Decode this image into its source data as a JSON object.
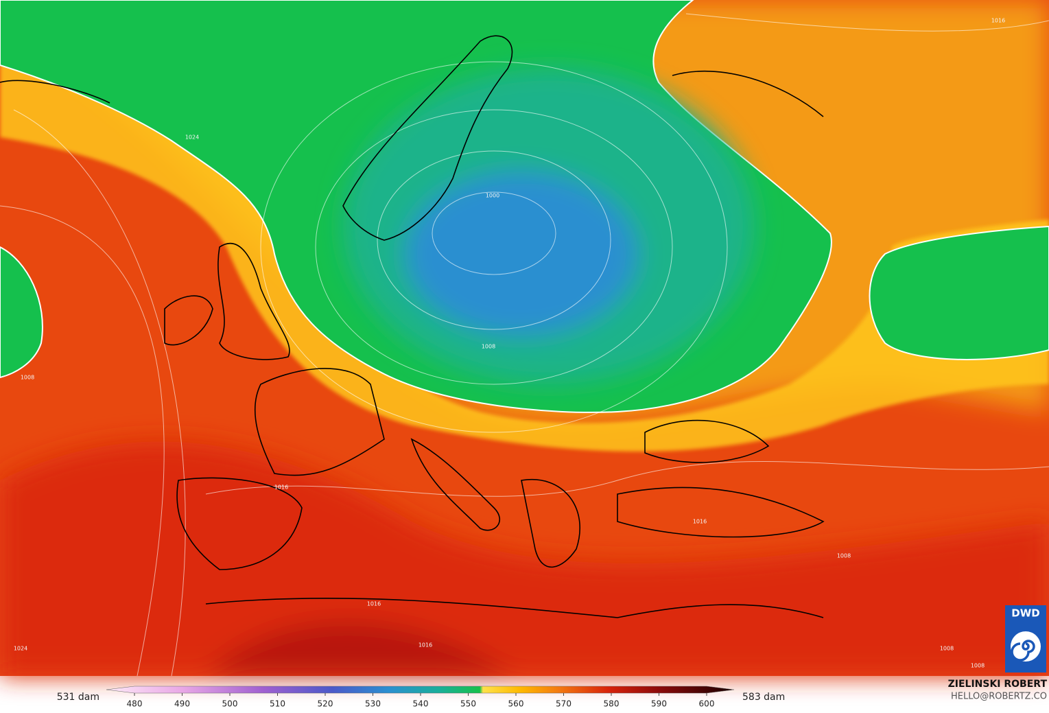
{
  "legend": {
    "min_label": "531 dam",
    "max_label": "583 dam",
    "ticks": [
      480,
      490,
      500,
      510,
      520,
      530,
      540,
      550,
      560,
      570,
      580,
      590,
      600
    ]
  },
  "credit": {
    "name": "ZIELINSKI ROBERT",
    "email": "HELLO@ROBERTZ.CO"
  },
  "logo": "DWD",
  "contour_labels": [
    "1024",
    "1016",
    "1008",
    "1000",
    "1008",
    "1016",
    "1016",
    "1016",
    "1016",
    "1008",
    "1008",
    "1024",
    "1008"
  ]
}
